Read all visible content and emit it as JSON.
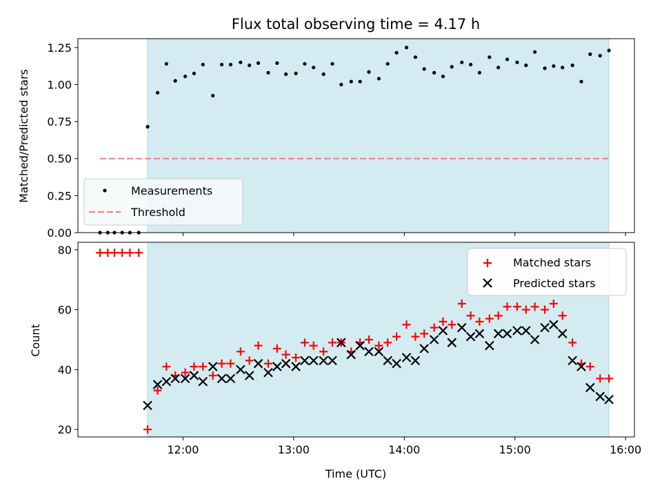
{
  "chart_data": {
    "type": "scatter",
    "title": "Flux total observing time = 4.17 h",
    "xlabel": "Time (UTC)",
    "xlim_hours": [
      11.05,
      16.08
    ],
    "xticks": [
      {
        "value": 12,
        "label": "12:00"
      },
      {
        "value": 13,
        "label": "13:00"
      },
      {
        "value": 14,
        "label": "14:00"
      },
      {
        "value": 15,
        "label": "15:00"
      },
      {
        "value": 16,
        "label": "16:00"
      }
    ],
    "shaded_interval_hours": [
      11.68,
      15.85
    ],
    "colors": {
      "shade": "#d3ebf1",
      "shade_edge": "#a9d6e5",
      "measurement": "#000000",
      "threshold": "#f08080",
      "matched": "#ff0000",
      "predicted": "#000000"
    },
    "panels": [
      {
        "name": "ratio",
        "ylabel": "Matched/Predicted stars",
        "ylim": [
          0,
          1.31
        ],
        "yticks": [
          "0.00",
          "0.25",
          "0.50",
          "0.75",
          "1.00",
          "1.25"
        ],
        "legend": {
          "placement": "lower-left",
          "entries": [
            "Measurements",
            "Threshold"
          ]
        },
        "series": [
          {
            "name": "Measurements",
            "marker": "dot",
            "x": [
              11.25,
              11.32,
              11.38,
              11.45,
              11.52,
              11.6,
              11.68,
              11.77,
              11.85,
              11.93,
              12.02,
              12.1,
              12.18,
              12.27,
              12.35,
              12.43,
              12.52,
              12.6,
              12.68,
              12.77,
              12.85,
              12.93,
              13.02,
              13.1,
              13.18,
              13.27,
              13.35,
              13.43,
              13.52,
              13.6,
              13.68,
              13.77,
              13.85,
              13.93,
              14.02,
              14.1,
              14.18,
              14.27,
              14.35,
              14.43,
              14.52,
              14.6,
              14.68,
              14.77,
              14.85,
              14.93,
              15.02,
              15.1,
              15.18,
              15.27,
              15.35,
              15.43,
              15.52,
              15.6,
              15.68,
              15.77,
              15.85
            ],
            "y": [
              0,
              0,
              0,
              0,
              0,
              0,
              0.715,
              0.945,
              1.14,
              1.025,
              1.055,
              1.075,
              1.135,
              0.925,
              1.135,
              1.135,
              1.15,
              1.13,
              1.145,
              1.08,
              1.145,
              1.07,
              1.075,
              1.14,
              1.115,
              1.07,
              1.14,
              1.0,
              1.02,
              1.02,
              1.085,
              1.04,
              1.14,
              1.215,
              1.25,
              1.185,
              1.105,
              1.08,
              1.055,
              1.12,
              1.15,
              1.135,
              1.08,
              1.185,
              1.115,
              1.17,
              1.15,
              1.13,
              1.22,
              1.11,
              1.125,
              1.115,
              1.13,
              1.02,
              1.205,
              1.195,
              1.23
            ]
          },
          {
            "name": "Threshold",
            "marker": "dashed-line",
            "x": [
              11.25,
              15.85
            ],
            "y": [
              0.5,
              0.5
            ]
          }
        ]
      },
      {
        "name": "count",
        "ylabel": "Count",
        "ylim": [
          17.5,
          82.5
        ],
        "yticks": [
          "20",
          "40",
          "60",
          "80"
        ],
        "legend": {
          "placement": "upper-right",
          "entries": [
            "Matched stars",
            "Predicted stars"
          ]
        },
        "series": [
          {
            "name": "Matched stars",
            "marker": "plus",
            "x": [
              11.25,
              11.32,
              11.38,
              11.45,
              11.52,
              11.6,
              11.68,
              11.77,
              11.85,
              11.93,
              12.02,
              12.1,
              12.18,
              12.27,
              12.35,
              12.43,
              12.52,
              12.6,
              12.68,
              12.77,
              12.85,
              12.93,
              13.02,
              13.1,
              13.18,
              13.27,
              13.35,
              13.43,
              13.52,
              13.6,
              13.68,
              13.77,
              13.85,
              13.93,
              14.02,
              14.1,
              14.18,
              14.27,
              14.35,
              14.43,
              14.52,
              14.6,
              14.68,
              14.77,
              14.85,
              14.93,
              15.02,
              15.1,
              15.18,
              15.27,
              15.35,
              15.43,
              15.52,
              15.6,
              15.68,
              15.77,
              15.85
            ],
            "y": [
              79,
              79,
              79,
              79,
              79,
              79,
              20,
              33,
              41,
              38,
              39,
              41,
              41,
              38,
              42,
              42,
              46,
              43,
              48,
              42,
              47,
              45,
              44,
              49,
              48,
              46,
              49,
              49,
              46,
              49,
              50,
              48,
              49,
              51,
              55,
              51,
              52,
              54,
              56,
              55,
              62,
              58,
              56,
              57,
              58,
              61,
              61,
              60,
              61,
              60,
              62,
              58,
              49,
              42,
              41,
              37,
              37
            ]
          },
          {
            "name": "Predicted stars",
            "marker": "x",
            "x": [
              11.68,
              11.77,
              11.85,
              11.93,
              12.02,
              12.1,
              12.18,
              12.27,
              12.35,
              12.43,
              12.52,
              12.6,
              12.68,
              12.77,
              12.85,
              12.93,
              13.02,
              13.1,
              13.18,
              13.27,
              13.35,
              13.43,
              13.52,
              13.6,
              13.68,
              13.77,
              13.85,
              13.93,
              14.02,
              14.1,
              14.18,
              14.27,
              14.35,
              14.43,
              14.52,
              14.6,
              14.68,
              14.77,
              14.85,
              14.93,
              15.02,
              15.1,
              15.18,
              15.27,
              15.35,
              15.43,
              15.52,
              15.6,
              15.68,
              15.77,
              15.85
            ],
            "y": [
              28,
              35,
              36,
              37,
              37,
              38,
              36,
              41,
              37,
              37,
              40,
              38,
              42,
              39,
              41,
              42,
              41,
              43,
              43,
              43,
              43,
              49,
              45,
              48,
              46,
              46,
              43,
              42,
              44,
              43,
              47,
              50,
              53,
              49,
              54,
              51,
              52,
              48,
              52,
              52,
              53,
              53,
              50,
              54,
              55,
              52,
              43,
              41,
              34,
              31,
              30
            ]
          }
        ]
      }
    ]
  }
}
